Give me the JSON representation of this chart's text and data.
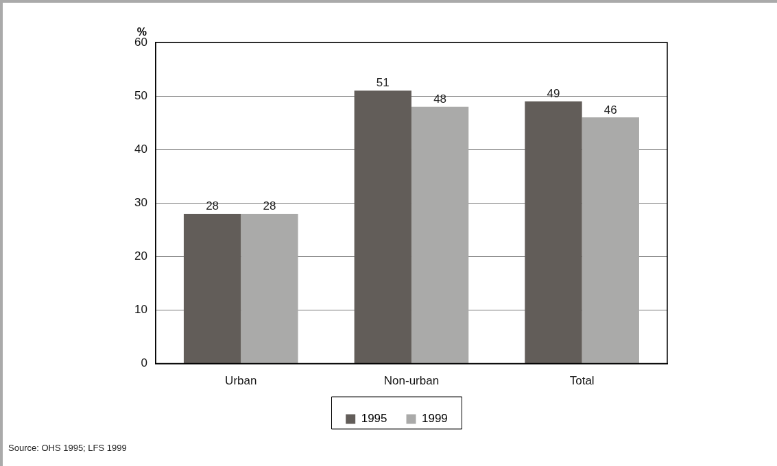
{
  "chart_data": {
    "type": "bar",
    "ylabel": "%",
    "categories": [
      "Urban",
      "Non-urban",
      "Total"
    ],
    "series": [
      {
        "name": "1995",
        "color": "#625d59",
        "values": [
          28,
          51,
          49
        ]
      },
      {
        "name": "1999",
        "color": "#aaaaa9",
        "values": [
          28,
          48,
          46
        ]
      }
    ],
    "ylim": [
      0,
      60
    ],
    "yticks": [
      0,
      10,
      20,
      30,
      40,
      50,
      60
    ],
    "grid": "y",
    "legend": "bottom",
    "data_labels": true,
    "annotations": [
      "Source: OHS 1995; LFS 1999"
    ]
  }
}
